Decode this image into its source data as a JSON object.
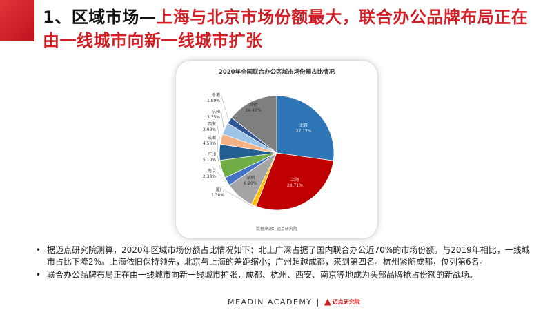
{
  "header": {
    "title_black": "1、区域市场—",
    "title_red": "上海与北京市场份额最大，联合办公品牌布局正在由一线城市向新一线城市扩张"
  },
  "colors": {
    "accent_red": "#d21f26"
  },
  "chart_data": {
    "type": "pie",
    "title": "2020年全国联合办公区域市场份额占比情况",
    "source": "数据来源：迈点研究院",
    "slices": [
      {
        "name": "北京",
        "value": 27.17,
        "label": "27.17%",
        "color": "#2e75b6"
      },
      {
        "name": "上海",
        "value": 28.71,
        "label": "28.71%",
        "color": "#c00000"
      },
      {
        "name": "厦门",
        "value": 1.38,
        "label": "1.38%",
        "color": "#ffc000"
      },
      {
        "name": "深圳",
        "value": 8.2,
        "label": "8.20%",
        "color": "#a5a5a5"
      },
      {
        "name": "南京",
        "value": 2.38,
        "label": "2.38%",
        "color": "#4472c4"
      },
      {
        "name": "广州",
        "value": 5.1,
        "label": "5.10%",
        "color": "#70ad47"
      },
      {
        "name": "成都",
        "value": 4.5,
        "label": "4.50%",
        "color": "#255e91"
      },
      {
        "name": "西安",
        "value": 2.9,
        "label": "2.90%",
        "color": "#f4b183"
      },
      {
        "name": "杭州",
        "value": 3.35,
        "label": "3.35%",
        "color": "#9dc3e6"
      },
      {
        "name": "香港",
        "value": 1.89,
        "label": "1.89%",
        "color": "#2f5597"
      },
      {
        "name": "其他",
        "value": 14.42,
        "label": "14.42%",
        "color": "#7f7f7f"
      }
    ]
  },
  "bullets": [
    "据迈点研究院测算，2020年区域市场份额占比情况如下：北上广深占据了国内联合办公近70%的市场份额。与2019年相比，一线城市占比下降2%。上海依旧保持领先，北京与上海的差距缩小；广州超越成都，来到第四名。杭州紧随成都，位列第6名。",
    "联合办公品牌布局正在由一线城市向新一线城市扩张，成都、杭州、西安、南京等地成为头部品牌抢占份额的新战场。"
  ],
  "footer": {
    "brand": "MEADIN ACADEMY",
    "separator": "|",
    "logo_text": "迈点研究院"
  }
}
